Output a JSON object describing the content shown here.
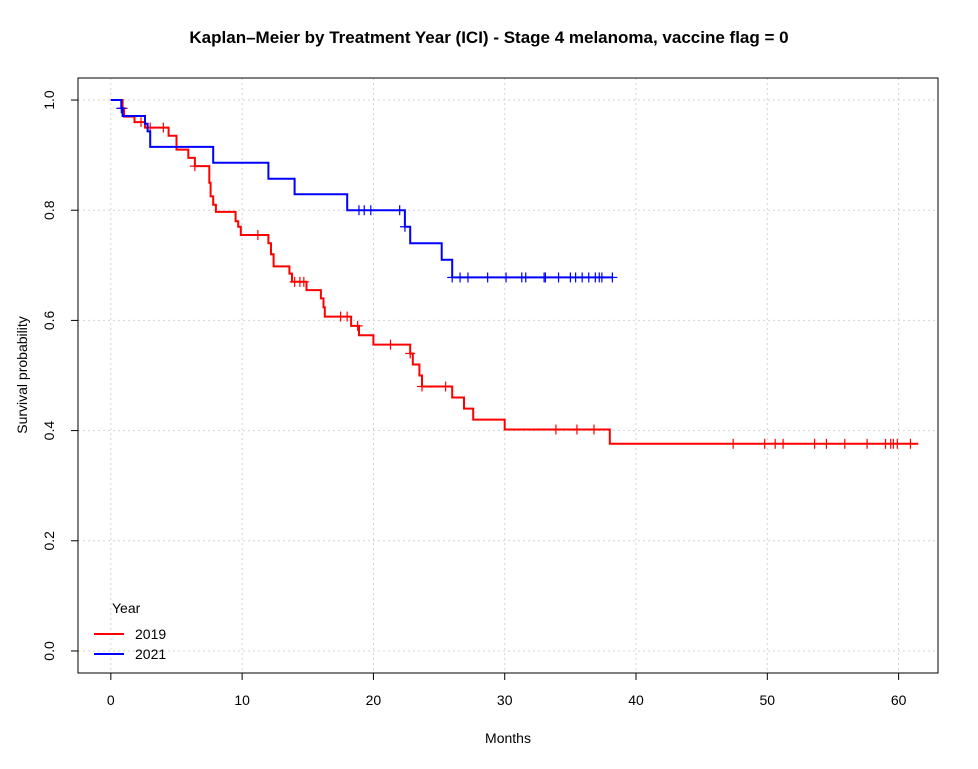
{
  "chart_data": {
    "type": "line",
    "subtype": "kaplan-meier step",
    "title": "Kaplan–Meier by Treatment Year (ICI) - Stage 4 melanoma, vaccine flag = 0",
    "xlabel": "Months",
    "ylabel": "Survival probability",
    "xlim": [
      -2.5,
      63
    ],
    "ylim": [
      -0.04,
      1.04
    ],
    "xticks": [
      0,
      10,
      20,
      30,
      40,
      50,
      60
    ],
    "yticks": [
      0.0,
      0.2,
      0.4,
      0.6,
      0.8,
      1.0
    ],
    "ytick_labels": [
      "0.0",
      "0.2",
      "0.4",
      "0.6",
      "0.8",
      "1.0"
    ],
    "grid": true,
    "legend": {
      "title": "Year",
      "position": "bottom-left"
    },
    "series": [
      {
        "name": "2019",
        "color": "#ff0000",
        "steps": [
          [
            0.0,
            1.0
          ],
          [
            0.9,
            0.985
          ],
          [
            1.0,
            0.97
          ],
          [
            1.8,
            0.96
          ],
          [
            2.6,
            0.95
          ],
          [
            4.4,
            0.935
          ],
          [
            5.0,
            0.91
          ],
          [
            5.9,
            0.895
          ],
          [
            6.4,
            0.88
          ],
          [
            7.5,
            0.85
          ],
          [
            7.6,
            0.825
          ],
          [
            7.8,
            0.81
          ],
          [
            8.0,
            0.797
          ],
          [
            9.5,
            0.78
          ],
          [
            9.7,
            0.77
          ],
          [
            9.9,
            0.755
          ],
          [
            12.0,
            0.74
          ],
          [
            12.2,
            0.72
          ],
          [
            12.4,
            0.698
          ],
          [
            13.6,
            0.685
          ],
          [
            13.8,
            0.67
          ],
          [
            14.9,
            0.655
          ],
          [
            16.0,
            0.64
          ],
          [
            16.2,
            0.624
          ],
          [
            16.3,
            0.607
          ],
          [
            17.8,
            0.607
          ],
          [
            18.3,
            0.59
          ],
          [
            18.9,
            0.573
          ],
          [
            20.0,
            0.556
          ],
          [
            22.8,
            0.54
          ],
          [
            23.0,
            0.52
          ],
          [
            23.5,
            0.5
          ],
          [
            23.7,
            0.48
          ],
          [
            25.5,
            0.48
          ],
          [
            26.0,
            0.46
          ],
          [
            26.9,
            0.44
          ],
          [
            27.6,
            0.42
          ],
          [
            30.0,
            0.402
          ],
          [
            38.0,
            0.376
          ],
          [
            61.5,
            0.376
          ]
        ],
        "censor_times": [
          0.9,
          2.3,
          3.0,
          4.0,
          6.4,
          11.2,
          14.0,
          14.4,
          14.7,
          17.5,
          18.0,
          18.8,
          21.3,
          22.8,
          23.7,
          25.5,
          33.9,
          35.5,
          36.8,
          47.4,
          49.8,
          50.6,
          51.2,
          53.6,
          54.5,
          55.9,
          57.6,
          59.0,
          59.4,
          59.6,
          59.9,
          60.9
        ]
      },
      {
        "name": "2021",
        "color": "#0000ff",
        "steps": [
          [
            0.0,
            1.0
          ],
          [
            0.8,
            0.985
          ],
          [
            0.9,
            0.971
          ],
          [
            2.6,
            0.957
          ],
          [
            2.8,
            0.943
          ],
          [
            3.0,
            0.915
          ],
          [
            7.8,
            0.886
          ],
          [
            12.0,
            0.857
          ],
          [
            14.0,
            0.829
          ],
          [
            18.0,
            0.8
          ],
          [
            22.4,
            0.77
          ],
          [
            22.8,
            0.74
          ],
          [
            25.2,
            0.71
          ],
          [
            26.0,
            0.678
          ],
          [
            38.2,
            0.678
          ]
        ],
        "censor_times": [
          0.8,
          18.9,
          19.3,
          19.8,
          22.0,
          22.4,
          26.0,
          26.6,
          27.2,
          28.7,
          30.1,
          31.3,
          31.6,
          33.0,
          33.1,
          34.1,
          35.0,
          35.4,
          35.9,
          36.4,
          36.9,
          37.2,
          37.4,
          38.2
        ]
      }
    ]
  }
}
